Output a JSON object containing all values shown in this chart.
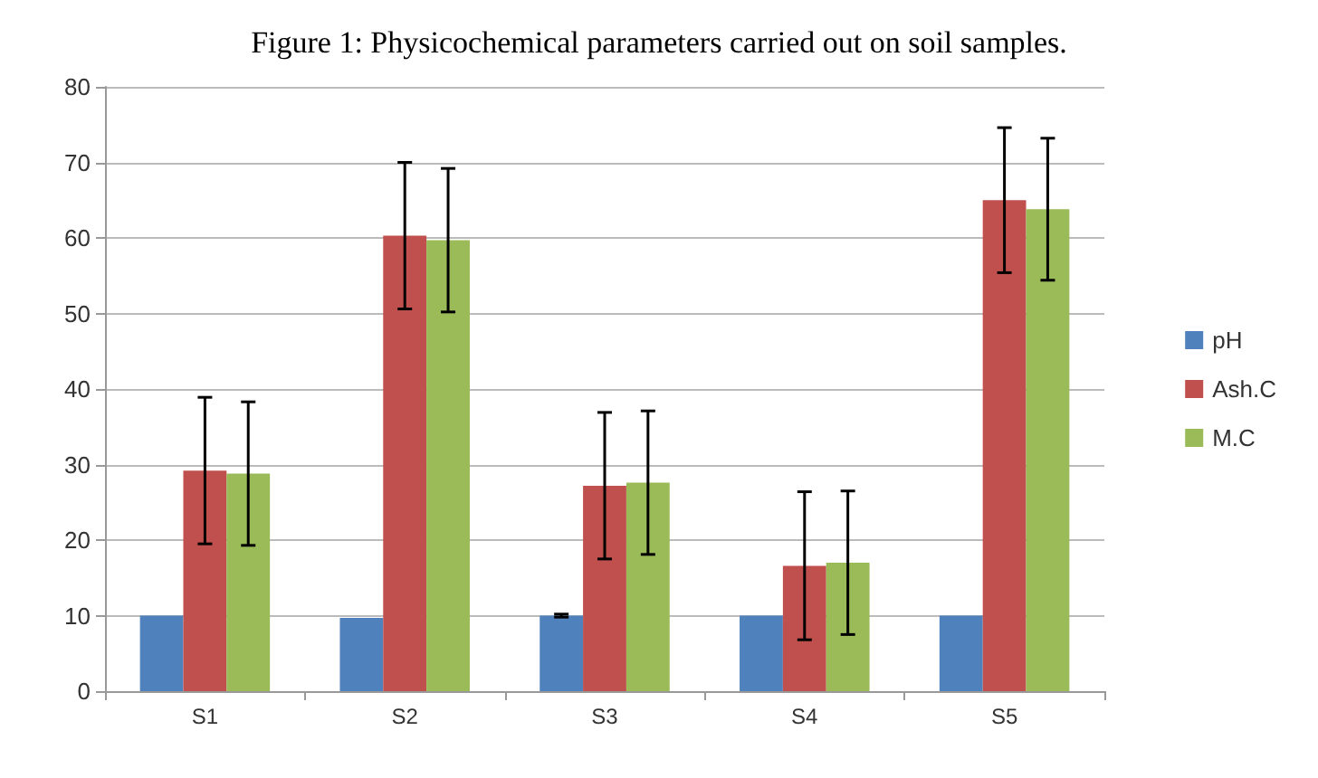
{
  "chart_data": {
    "type": "bar",
    "title": "Figure 1: Physicochemical parameters carried out on soil samples.",
    "categories": [
      "S1",
      "S2",
      "S3",
      "S4",
      "S5"
    ],
    "series": [
      {
        "name": "pH",
        "color": "#4f81bd",
        "values": [
          10,
          9.7,
          10,
          10,
          10
        ],
        "errors": [
          null,
          null,
          0.2,
          null,
          null
        ]
      },
      {
        "name": "Ash.C",
        "color": "#c0504d",
        "values": [
          29.2,
          60.3,
          27.2,
          16.6,
          65.0
        ],
        "errors": [
          9.7,
          9.7,
          9.7,
          9.8,
          9.6
        ]
      },
      {
        "name": "M.C",
        "color": "#9bbb59",
        "values": [
          28.8,
          59.7,
          27.6,
          17.0,
          63.8
        ],
        "errors": [
          9.5,
          9.5,
          9.5,
          9.5,
          9.4
        ]
      }
    ],
    "ylim": [
      0,
      80
    ],
    "yticks": [
      0,
      10,
      20,
      30,
      40,
      50,
      60,
      70,
      80
    ],
    "grid": "y",
    "legend": "right"
  }
}
